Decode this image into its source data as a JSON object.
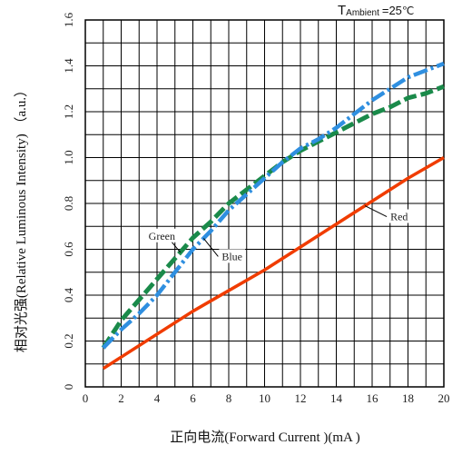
{
  "chart_data": {
    "type": "line",
    "condition": {
      "prefix": "T",
      "subscript": "Ambient",
      "value": "=25",
      "unit": "℃"
    },
    "xlabel": "正向电流(Forward  Current )(mA )",
    "ylabel": "相对光强(Relative Luminous Intensity) （a.u.）",
    "xlim": [
      0,
      20
    ],
    "ylim": [
      0,
      1.6
    ],
    "xticks": [
      0,
      2,
      4,
      6,
      8,
      10,
      12,
      14,
      16,
      18,
      20
    ],
    "yticks": [
      "0",
      "0.2",
      "0.4",
      "0.6",
      "0.8",
      "1.0",
      "1.2",
      "1.4",
      "1.6"
    ],
    "grid": true,
    "series": [
      {
        "name": "Red",
        "color": "#f03c00",
        "style": "solid",
        "x": [
          1,
          2,
          4,
          6,
          8,
          10,
          12,
          14,
          16,
          18,
          20
        ],
        "y": [
          0.08,
          0.13,
          0.23,
          0.33,
          0.42,
          0.51,
          0.61,
          0.71,
          0.81,
          0.91,
          1.0
        ]
      },
      {
        "name": "Green",
        "color": "#1a8a4a",
        "style": "dash",
        "x": [
          1,
          2,
          3,
          4,
          5,
          6,
          7,
          8,
          9,
          10,
          11,
          12,
          13,
          14,
          15,
          16,
          17,
          18,
          19,
          20
        ],
        "y": [
          0.17,
          0.29,
          0.38,
          0.47,
          0.56,
          0.65,
          0.72,
          0.8,
          0.86,
          0.92,
          0.98,
          1.03,
          1.07,
          1.11,
          1.15,
          1.19,
          1.22,
          1.26,
          1.28,
          1.31
        ]
      },
      {
        "name": "Blue",
        "color": "#2f8fe0",
        "style": "dashdot",
        "x": [
          1,
          2,
          3,
          4,
          5,
          6,
          7,
          8,
          9,
          10,
          11,
          12,
          13,
          14,
          15,
          16,
          17,
          18,
          19,
          20
        ],
        "y": [
          0.17,
          0.25,
          0.32,
          0.4,
          0.5,
          0.6,
          0.68,
          0.77,
          0.84,
          0.91,
          0.98,
          1.04,
          1.08,
          1.13,
          1.19,
          1.25,
          1.3,
          1.35,
          1.38,
          1.41
        ]
      }
    ],
    "annotations": [
      {
        "text": "Green",
        "series": "Green",
        "x": 5.3
      },
      {
        "text": "Blue",
        "series": "Blue",
        "x": 6.6
      },
      {
        "text": "Red",
        "series": "Red",
        "x": 15.6
      }
    ]
  }
}
